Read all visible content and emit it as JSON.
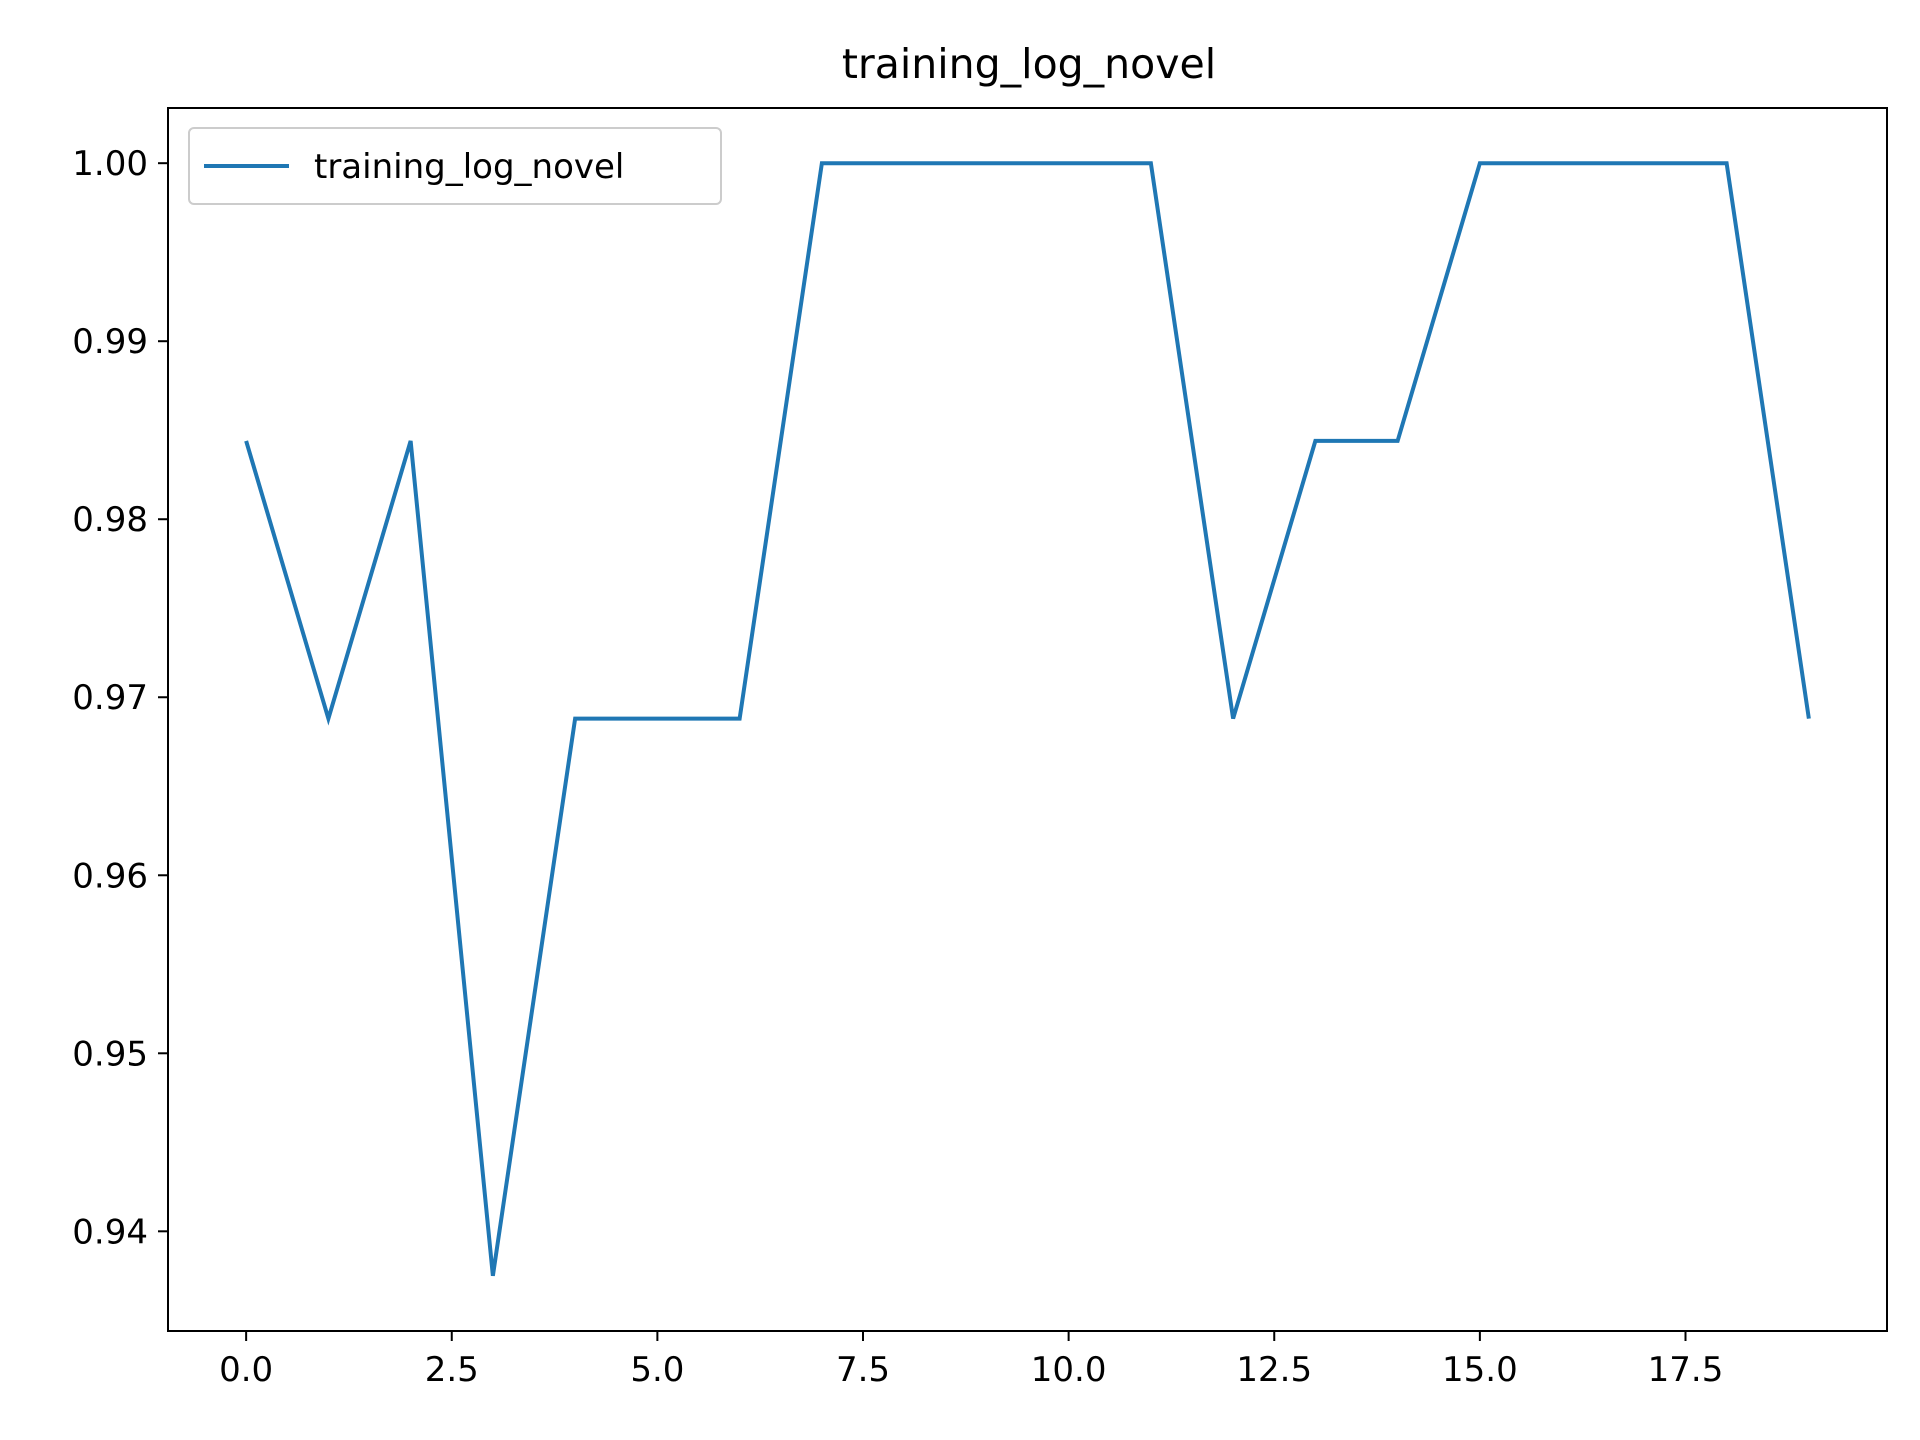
{
  "chart_data": {
    "type": "line",
    "title": "training_log_novel",
    "xlabel": "",
    "ylabel": "",
    "xlim": [
      -0.95,
      19.95
    ],
    "ylim": [
      0.9344,
      1.0031
    ],
    "grid": false,
    "legend": {
      "position": "top-left",
      "entries": [
        "training_log_novel"
      ]
    },
    "x_ticks": [
      0.0,
      2.5,
      5.0,
      7.5,
      10.0,
      12.5,
      15.0,
      17.5
    ],
    "x_tick_labels": [
      "0.0",
      "2.5",
      "5.0",
      "7.5",
      "10.0",
      "12.5",
      "15.0",
      "17.5"
    ],
    "y_ticks": [
      0.94,
      0.95,
      0.96,
      0.97,
      0.98,
      0.99,
      1.0
    ],
    "y_tick_labels": [
      "0.94",
      "0.95",
      "0.96",
      "0.97",
      "0.98",
      "0.99",
      "1.00"
    ],
    "series": [
      {
        "name": "training_log_novel",
        "color": "#1f77b4",
        "x": [
          0,
          1,
          2,
          3,
          4,
          5,
          6,
          7,
          8,
          9,
          10,
          11,
          12,
          13,
          14,
          15,
          16,
          17,
          18,
          19
        ],
        "y": [
          0.9844,
          0.9688,
          0.9844,
          0.9375,
          0.9688,
          0.9688,
          0.9688,
          1.0,
          1.0,
          1.0,
          1.0,
          1.0,
          0.9688,
          0.9844,
          0.9844,
          1.0,
          1.0,
          1.0,
          1.0,
          0.9688
        ]
      }
    ]
  }
}
